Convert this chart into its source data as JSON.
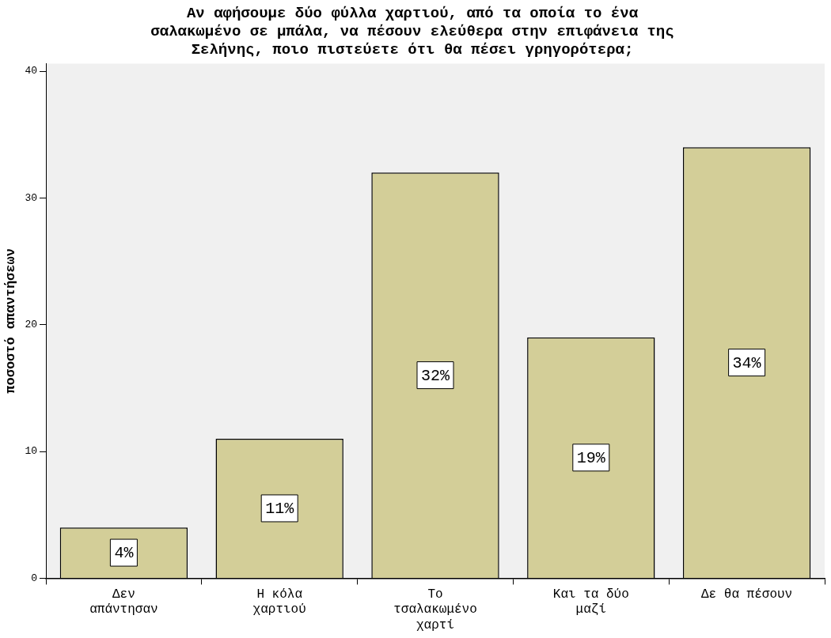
{
  "chart_data": {
    "type": "bar",
    "title": "Αν αφήσουμε δύο φύλλα χαρτιού, από τα οποία το ένα σαλακωμένο σε μπάλα, να πέσουν ελεύθερα στην επιφάνεια της Σελήνης, ποιο πιστεύετε ότι θα πέσει γρηγορότερα;",
    "ylabel": "ποσοστό απαντήσεων",
    "categories": [
      "Δεν απάντησαν",
      "Η κόλα χαρτιού",
      "Το τσαλακωμένο χαρτί",
      "Και τα δύο μαζί",
      "Δε θα πέσουν"
    ],
    "values": [
      4,
      11,
      32,
      19,
      34
    ],
    "value_labels": [
      "4%",
      "11%",
      "32%",
      "19%",
      "34%"
    ],
    "color": "#d3ce98",
    "ylim": [
      0,
      40.6
    ],
    "yticks": [
      0,
      10,
      20,
      30,
      40
    ],
    "grid": false,
    "legend": false
  }
}
